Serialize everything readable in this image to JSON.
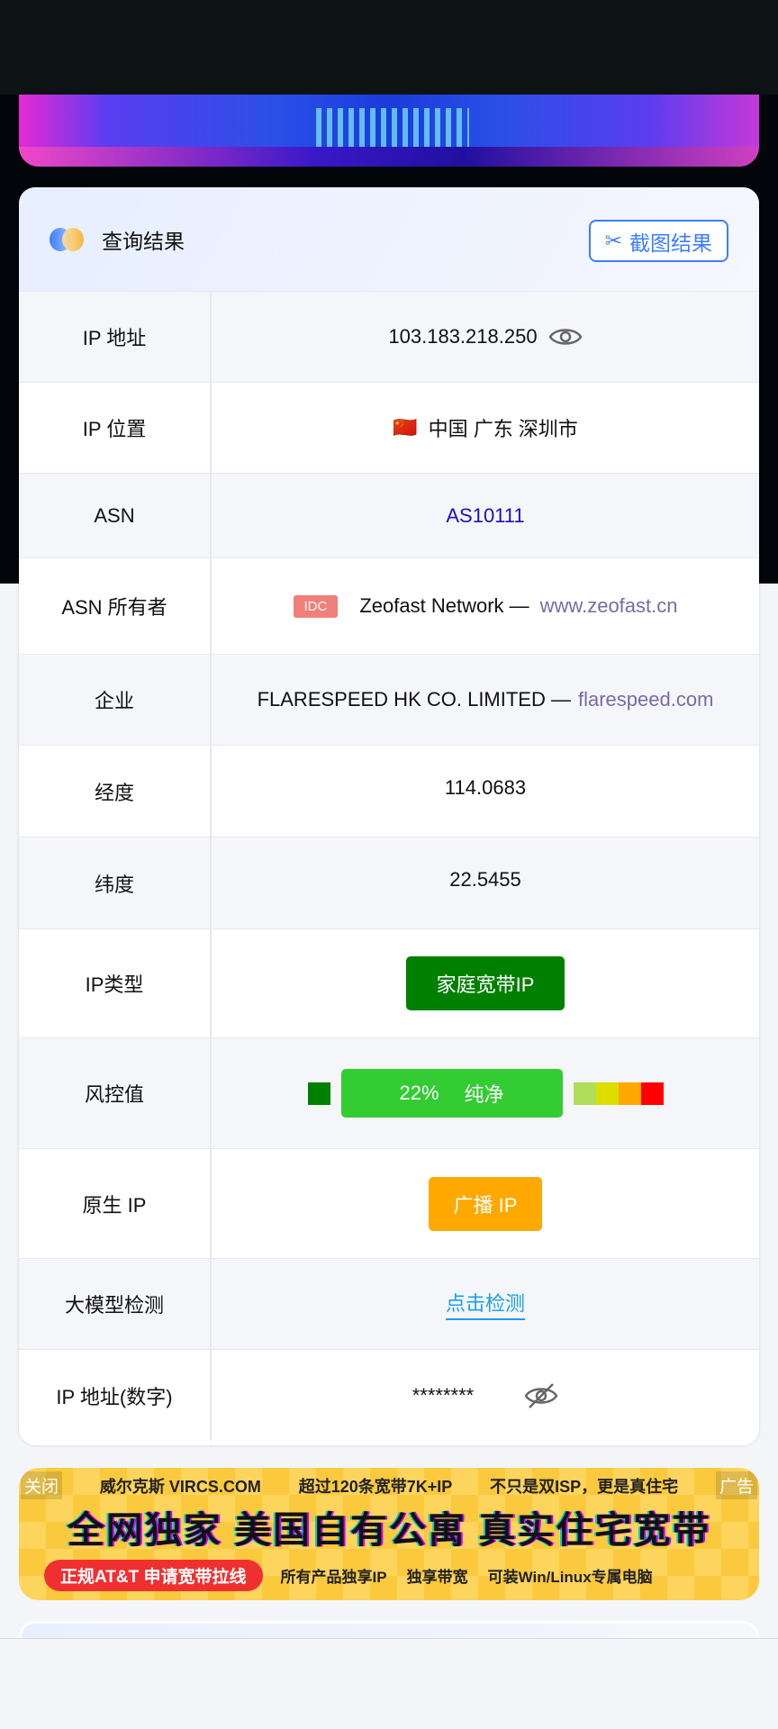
{
  "header": {
    "title": "查询结果",
    "screenshot_button": "截图结果"
  },
  "rows": [
    {
      "label": "IP 地址",
      "value": "103.183.218.250"
    },
    {
      "label": "IP 位置",
      "flag": "🇨🇳",
      "value": "中国 广东 深圳市"
    },
    {
      "label": "ASN",
      "value": "AS10111"
    },
    {
      "label": "ASN 所有者",
      "badge": "IDC",
      "value": "Zeofast Network —",
      "link": "www.zeofast.cn"
    },
    {
      "label": "企业",
      "value": "FLARESPEED HK CO. LIMITED —",
      "link": "flarespeed.com"
    },
    {
      "label": "经度",
      "value": "114.0683"
    },
    {
      "label": "纬度",
      "value": "22.5455"
    },
    {
      "label": "IP类型",
      "value": "家庭宽带IP"
    },
    {
      "label": "风控值",
      "percent": "22%",
      "value": "纯净",
      "risk_fraction": 0.22
    },
    {
      "label": "原生 IP",
      "value": "广播 IP"
    },
    {
      "label": "大模型检测",
      "value": "点击检测"
    },
    {
      "label": "IP 地址(数字)",
      "value": "********"
    }
  ],
  "colors": {
    "accent": "#3d7dff",
    "ip_type": "#008000",
    "risk": "#33cc33",
    "native": "#ffa800",
    "scale": [
      "#b0dd5a",
      "#dddd00",
      "#ffa800",
      "#ff0000"
    ]
  },
  "ad": {
    "close": "关闭",
    "label": "广告",
    "top": [
      "威尔克斯 VIRCS.COM",
      "超过120条宽带7K+IP",
      "不只是双ISP，更是真住宅"
    ],
    "main": "全网独家 美国自有公寓 真实住宅宽带",
    "pill": "正规AT&T 申请宽带拉线",
    "bottom": [
      "所有产品独享IP",
      "独享带宽",
      "可装Win/Linux专属电脑"
    ]
  }
}
